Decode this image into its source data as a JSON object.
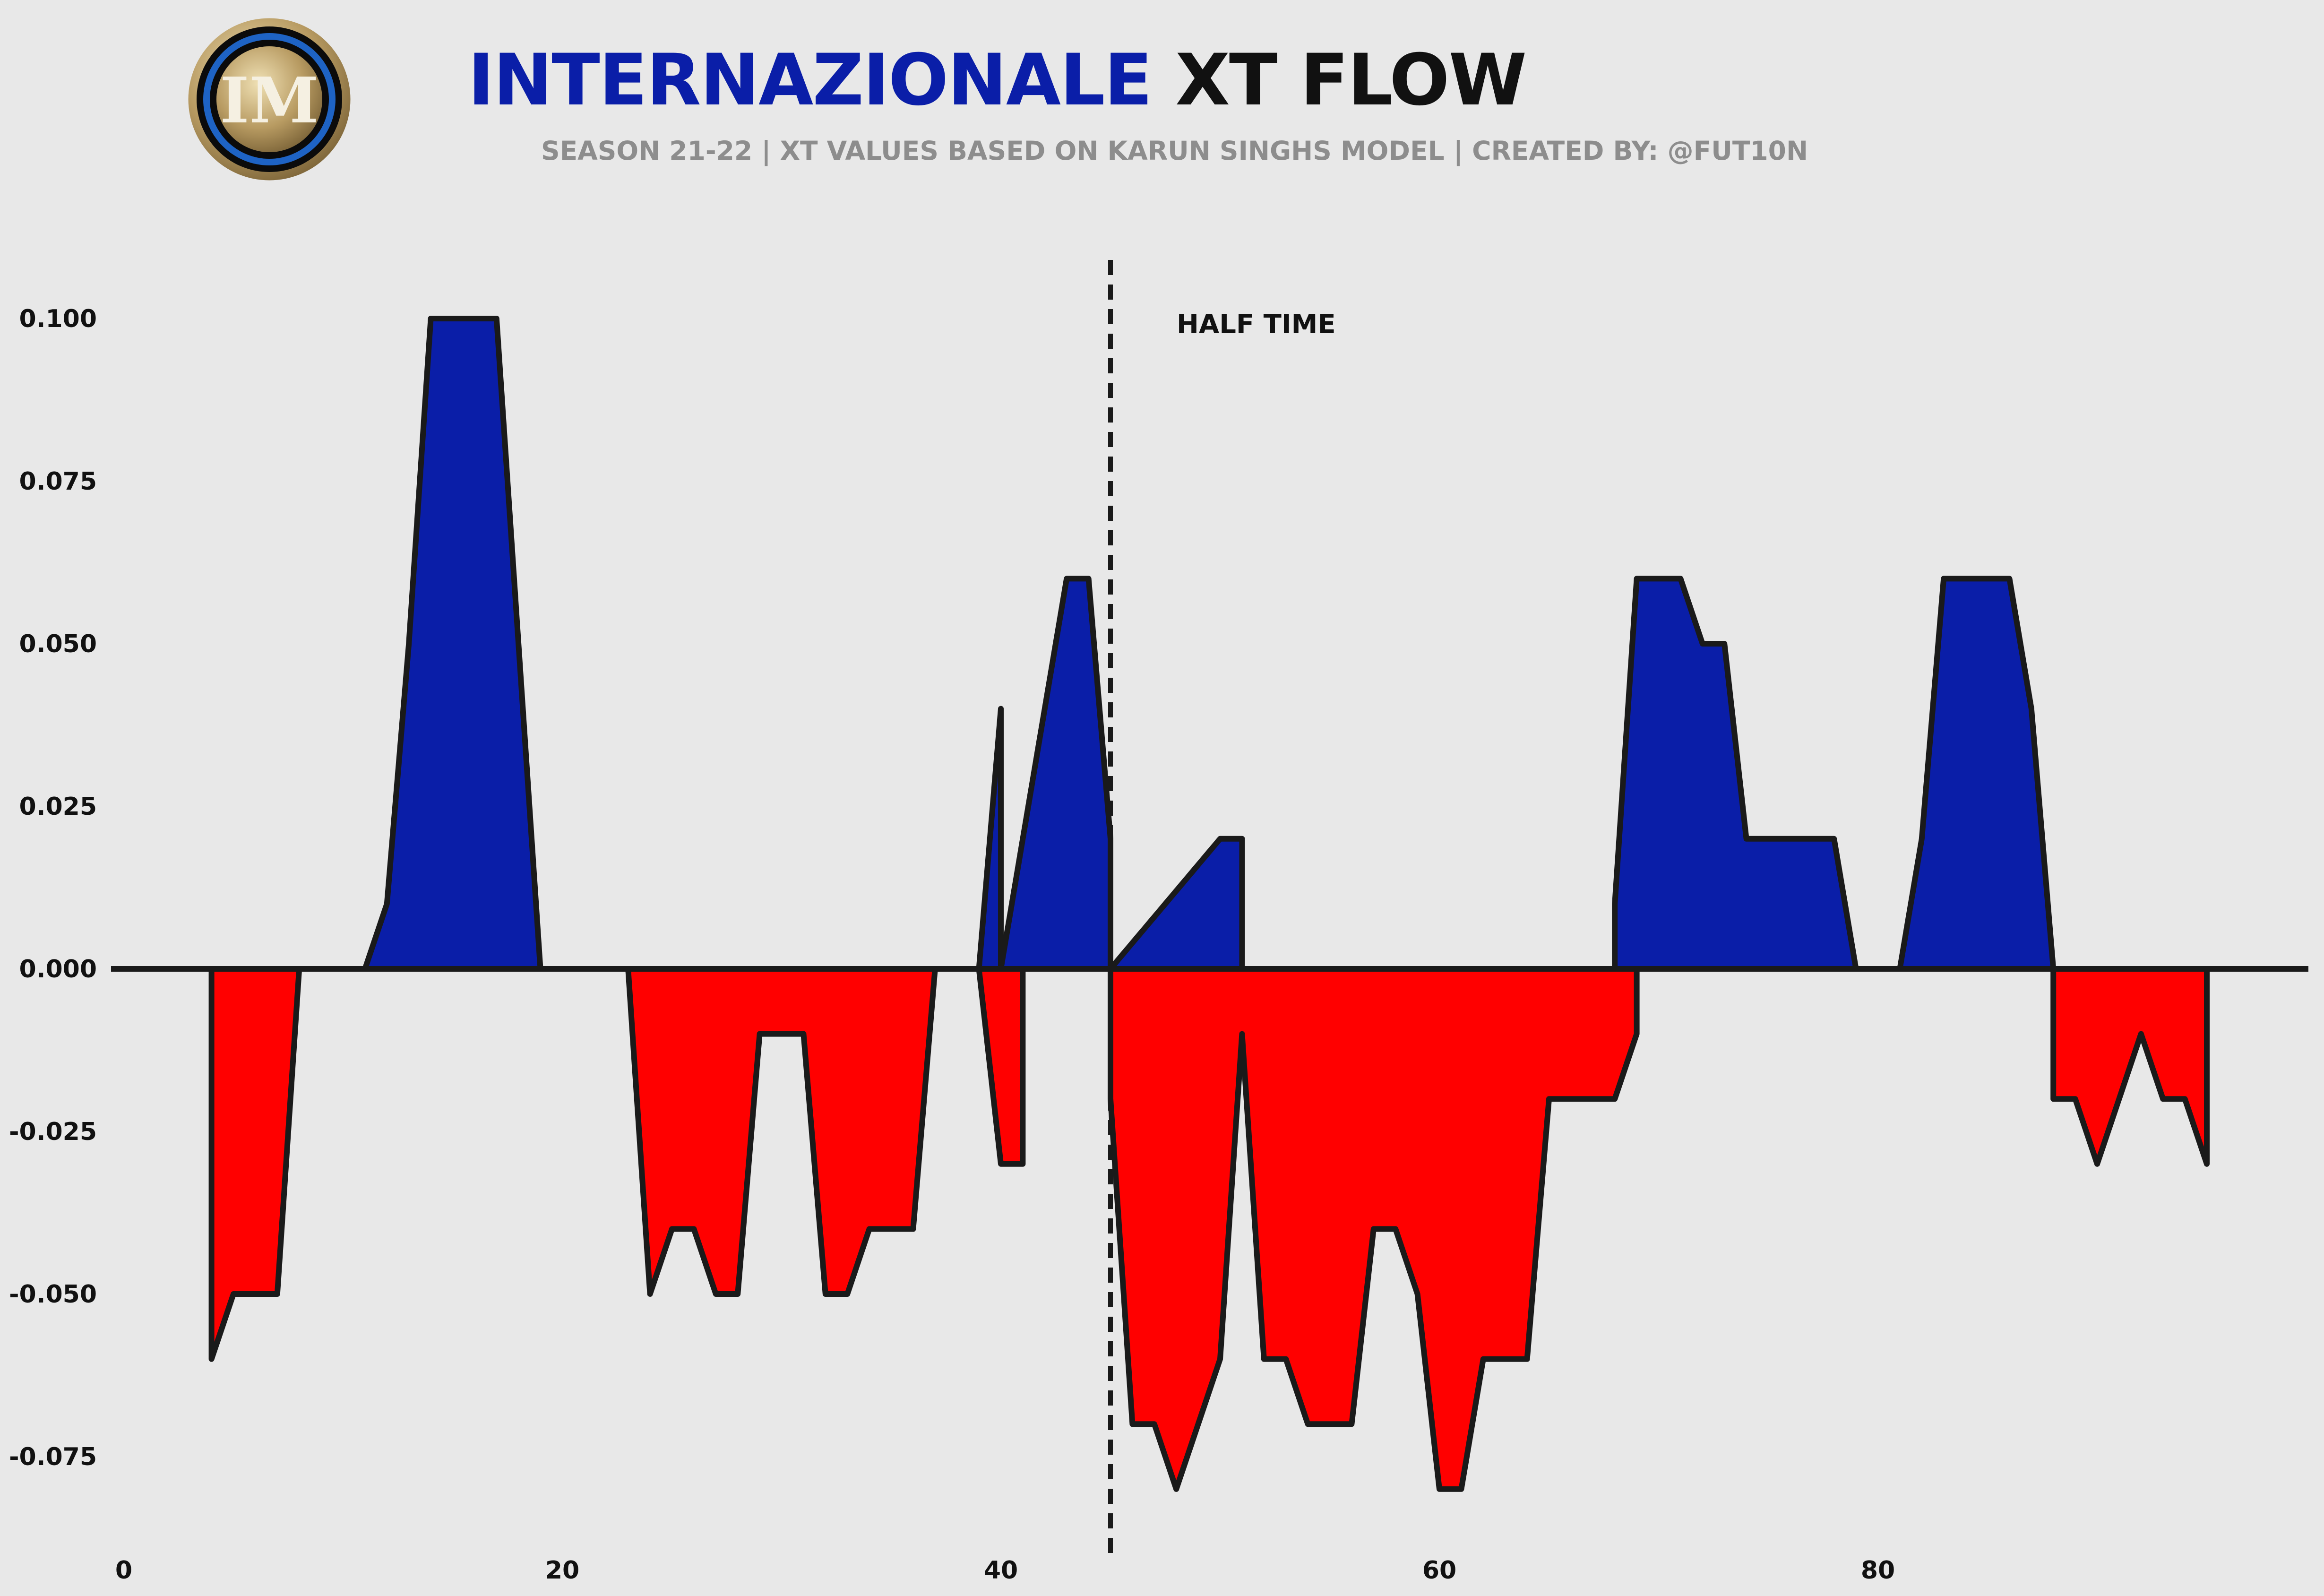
{
  "header": {
    "title_team": "INTERNAZIONALE",
    "title_rest": "XT FLOW",
    "subtitle": "SEASON 21-22 | XT VALUES BASED ON KARUN SINGHS MODEL | CREATED BY: @FUT10N",
    "logo_icon": "inter-milan-crest-icon"
  },
  "colors": {
    "team": "#0a1ea8",
    "opponent": "#ff0000",
    "outline": "#1a1a1a",
    "background": "#e8e8e8"
  },
  "chart_data": {
    "type": "area",
    "title": "INTERNAZIONALE XT FLOW",
    "xlabel": "",
    "ylabel": "",
    "xlim": [
      0,
      99
    ],
    "ylim": [
      -0.085,
      0.11
    ],
    "xticks": [
      0,
      20,
      40,
      60,
      80
    ],
    "yticks": [
      -0.075,
      -0.05,
      -0.025,
      0.0,
      0.025,
      0.05,
      0.075,
      0.1
    ],
    "ytick_labels": [
      "-0.075",
      "-0.050",
      "-0.025",
      "0.000",
      "0.025",
      "0.050",
      "0.075",
      "0.100"
    ],
    "grid": false,
    "halftime": {
      "x": 45,
      "label": "HALF TIME"
    },
    "series": [
      {
        "color": "#0a1ea8",
        "points": [
          [
            11,
            0
          ],
          [
            12,
            0.01
          ],
          [
            13,
            0.05
          ],
          [
            14,
            0.1
          ],
          [
            15,
            0.1
          ],
          [
            16,
            0.1
          ],
          [
            17,
            0.1
          ],
          [
            18,
            0.05
          ],
          [
            19,
            0
          ],
          [
            39,
            0
          ],
          [
            40,
            0.04
          ],
          [
            40,
            0
          ],
          [
            42,
            0.04
          ],
          [
            43,
            0.06
          ],
          [
            44,
            0.06
          ],
          [
            45,
            0.02
          ],
          [
            45,
            0
          ],
          [
            50,
            0.02
          ],
          [
            51,
            0.02
          ],
          [
            51,
            0
          ],
          [
            68,
            0
          ],
          [
            68,
            0.01
          ],
          [
            69,
            0.06
          ],
          [
            70,
            0.06
          ],
          [
            71,
            0.06
          ],
          [
            72,
            0.05
          ],
          [
            73,
            0.05
          ],
          [
            74,
            0.02
          ],
          [
            75,
            0.02
          ],
          [
            76,
            0.02
          ],
          [
            77,
            0.02
          ],
          [
            78,
            0.02
          ],
          [
            79,
            0
          ],
          [
            81,
            0
          ],
          [
            82,
            0.02
          ],
          [
            83,
            0.06
          ],
          [
            84,
            0.06
          ],
          [
            85,
            0.06
          ],
          [
            86,
            0.06
          ],
          [
            87,
            0.04
          ],
          [
            88,
            0
          ]
        ]
      },
      {
        "color": "#ff0000",
        "points": [
          [
            4,
            0
          ],
          [
            4,
            -0.06
          ],
          [
            5,
            -0.05
          ],
          [
            6,
            -0.05
          ],
          [
            7,
            -0.05
          ],
          [
            8,
            0
          ],
          [
            23,
            0
          ],
          [
            24,
            -0.05
          ],
          [
            25,
            -0.04
          ],
          [
            26,
            -0.04
          ],
          [
            27,
            -0.05
          ],
          [
            28,
            -0.05
          ],
          [
            29,
            -0.01
          ],
          [
            30,
            -0.01
          ],
          [
            31,
            -0.01
          ],
          [
            32,
            -0.05
          ],
          [
            33,
            -0.05
          ],
          [
            34,
            -0.04
          ],
          [
            35,
            -0.04
          ],
          [
            36,
            -0.04
          ],
          [
            37,
            0
          ],
          [
            39,
            0
          ],
          [
            40,
            -0.03
          ],
          [
            41,
            -0.03
          ],
          [
            41,
            0
          ],
          [
            45,
            0
          ],
          [
            45,
            -0.02
          ],
          [
            46,
            -0.07
          ],
          [
            47,
            -0.07
          ],
          [
            48,
            -0.08
          ],
          [
            49,
            -0.07
          ],
          [
            50,
            -0.06
          ],
          [
            51,
            -0.01
          ],
          [
            52,
            -0.06
          ],
          [
            53,
            -0.06
          ],
          [
            54,
            -0.07
          ],
          [
            55,
            -0.07
          ],
          [
            56,
            -0.07
          ],
          [
            57,
            -0.04
          ],
          [
            58,
            -0.04
          ],
          [
            59,
            -0.05
          ],
          [
            60,
            -0.08
          ],
          [
            61,
            -0.08
          ],
          [
            62,
            -0.06
          ],
          [
            63,
            -0.06
          ],
          [
            64,
            -0.06
          ],
          [
            65,
            -0.02
          ],
          [
            66,
            -0.02
          ],
          [
            67,
            -0.02
          ],
          [
            68,
            -0.02
          ],
          [
            69,
            -0.01
          ],
          [
            69,
            0
          ],
          [
            88,
            0
          ],
          [
            88,
            -0.02
          ],
          [
            89,
            -0.02
          ],
          [
            90,
            -0.03
          ],
          [
            91,
            -0.02
          ],
          [
            92,
            -0.01
          ],
          [
            93,
            -0.02
          ],
          [
            94,
            -0.02
          ],
          [
            95,
            -0.03
          ],
          [
            95,
            0
          ]
        ]
      }
    ]
  }
}
